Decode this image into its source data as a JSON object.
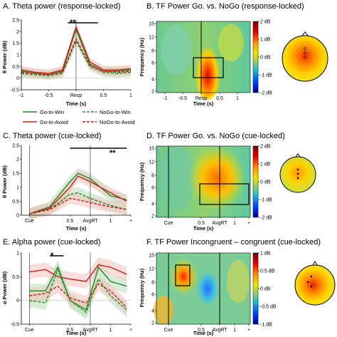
{
  "panels": {
    "A": {
      "title": "A. Theta power (response-locked)",
      "ylabel": "θ Power (dB)",
      "xlabel": "Time (s)",
      "xticks": [
        "-1",
        "-0.5",
        "Resp",
        "0.5",
        "1"
      ],
      "yticks": [
        "2.5",
        "2",
        "1.5",
        "1",
        "0.5",
        "0",
        "-0.5"
      ],
      "sig": "**"
    },
    "B": {
      "title": "B. TF Power Go. vs. NoGo (response-locked)",
      "ylabel": "Frequency (Hz)",
      "xlabel": "Time (s)",
      "xticks": [
        "-1",
        "-0.5",
        "Resp",
        "0.5",
        "1"
      ],
      "yticks": [
        "15",
        "12",
        "8",
        "6",
        "4",
        "2"
      ],
      "cbar": [
        "2 dB",
        "1 dB",
        "0 dB",
        "-1 dB",
        "-2 dB"
      ]
    },
    "C": {
      "title": "C. Theta  power (cue-locked)",
      "ylabel": "θ Power (dB)",
      "xlabel": "Time (s)",
      "xticks": [
        "Cue",
        "0.5",
        "AvgRT",
        "1",
        "+"
      ],
      "yticks": [
        "2.5",
        "2",
        "1.5",
        "1",
        "0.5",
        "0"
      ],
      "sig": "**"
    },
    "D": {
      "title": "D. TF Power Go. vs. NoGo (cue-locked)",
      "ylabel": "Frequency (Hz)",
      "xlabel": "Time (s)",
      "xticks": [
        "Cue",
        "0.5",
        "AvgRT",
        "1",
        "+"
      ],
      "yticks": [
        "15",
        "12",
        "8",
        "6",
        "4",
        "2"
      ],
      "cbar": [
        "2 dB",
        "1 dB",
        "0 dB",
        "-1 dB",
        "-2 dB"
      ]
    },
    "E": {
      "title": "E. Alpha power (cue-locked)",
      "ylabel": "α Power (dB)",
      "xlabel": "Time (s)",
      "xticks": [
        "Cue",
        "0.5",
        "AvgRT",
        "1",
        "+"
      ],
      "yticks": [
        "1",
        "0.5",
        "0",
        "-0.5"
      ],
      "sig": "*"
    },
    "F": {
      "title": "F. TF Power Incongruent – congruent (cue-locked)",
      "ylabel": "Frequency (Hz)",
      "xlabel": "Time (s)",
      "xticks": [
        "Cue",
        "0.5",
        "AvgRT",
        "1",
        "+"
      ],
      "yticks": [
        "15",
        "12",
        "8",
        "6",
        "4",
        "2"
      ],
      "cbar": [
        "1 dB",
        "0.5 dB",
        "0 dB",
        "-0.5 dB",
        "-1 dB"
      ]
    }
  },
  "legend": {
    "go_win": "Go-to-Win",
    "nogo_win": "NoGo-to-Win",
    "go_avoid": "Go-to-Avoid",
    "nogo_avoid": "NoGo-to-Avoid"
  },
  "colors": {
    "win": "#1e8c1e",
    "avoid": "#c81e1e",
    "win_band": "#b9ddb9",
    "avoid_band": "#f0c3bb"
  },
  "chart_data": [
    {
      "type": "line",
      "panel": "A",
      "x": [
        -1,
        -0.75,
        -0.5,
        -0.25,
        0,
        0.25,
        0.5,
        0.75,
        1
      ],
      "ylim": [
        -0.5,
        2.5
      ],
      "series": [
        {
          "name": "Go-to-Win",
          "values": [
            0.3,
            0.2,
            0.15,
            0.3,
            2.1,
            0.6,
            0.3,
            0.3,
            0.35
          ]
        },
        {
          "name": "Go-to-Avoid",
          "values": [
            0.35,
            0.25,
            0.2,
            0.35,
            2.2,
            0.7,
            0.35,
            0.35,
            0.4
          ]
        },
        {
          "name": "NoGo-to-Win",
          "values": [
            0.2,
            0.15,
            0.1,
            0.2,
            1.6,
            0.5,
            0.25,
            0.2,
            0.25
          ]
        },
        {
          "name": "NoGo-to-Avoid",
          "values": [
            0.25,
            0.2,
            0.15,
            0.25,
            1.7,
            0.55,
            0.3,
            0.25,
            0.3
          ]
        }
      ]
    },
    {
      "type": "line",
      "panel": "C",
      "x": [
        0,
        0.25,
        0.5,
        0.6,
        0.75,
        1,
        1.2
      ],
      "ylim": [
        0,
        2.5
      ],
      "series": [
        {
          "name": "Go-to-Win",
          "values": [
            0.05,
            0.3,
            1.2,
            1.5,
            1.3,
            0.7,
            0.55
          ]
        },
        {
          "name": "Go-to-Avoid",
          "values": [
            0.05,
            0.25,
            1.0,
            1.4,
            1.2,
            0.8,
            0.5
          ]
        },
        {
          "name": "NoGo-to-Win",
          "values": [
            0.05,
            0.2,
            0.75,
            0.8,
            0.6,
            0.35,
            0.2
          ]
        },
        {
          "name": "NoGo-to-Avoid",
          "values": [
            0.05,
            0.2,
            0.6,
            0.55,
            0.45,
            0.3,
            0.2
          ]
        }
      ]
    },
    {
      "type": "line",
      "panel": "E",
      "x": [
        0,
        0.2,
        0.35,
        0.5,
        0.7,
        0.85,
        1,
        1.2
      ],
      "ylim": [
        -0.5,
        1
      ],
      "series": [
        {
          "name": "Go-to-Win",
          "values": [
            0.2,
            0.2,
            0.7,
            0.0,
            -0.2,
            0.7,
            0.4,
            0.3
          ]
        },
        {
          "name": "Go-to-Avoid",
          "values": [
            0.6,
            0.65,
            0.5,
            0.45,
            0.4,
            0.75,
            0.7,
            0.55
          ]
        },
        {
          "name": "NoGo-to-Win",
          "values": [
            0.0,
            -0.05,
            0.65,
            0.0,
            -0.25,
            0.45,
            0.1,
            -0.2
          ]
        },
        {
          "name": "NoGo-to-Avoid",
          "values": [
            0.1,
            0.15,
            0.3,
            0.05,
            -0.05,
            0.35,
            0.2,
            -0.15
          ]
        }
      ]
    }
  ]
}
